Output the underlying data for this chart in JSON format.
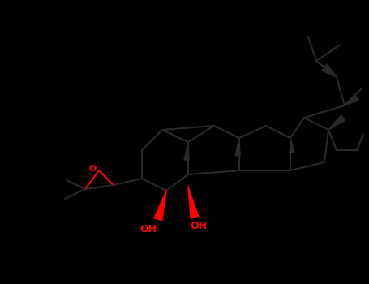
{
  "background": "#000000",
  "bond_color": "#2a2a2a",
  "heteroatom_color": "#ff0000",
  "lw": 1.5,
  "figsize": [
    4.55,
    3.5
  ],
  "dpi": 100,
  "xlim": [
    0,
    455
  ],
  "ylim": [
    0,
    350
  ]
}
